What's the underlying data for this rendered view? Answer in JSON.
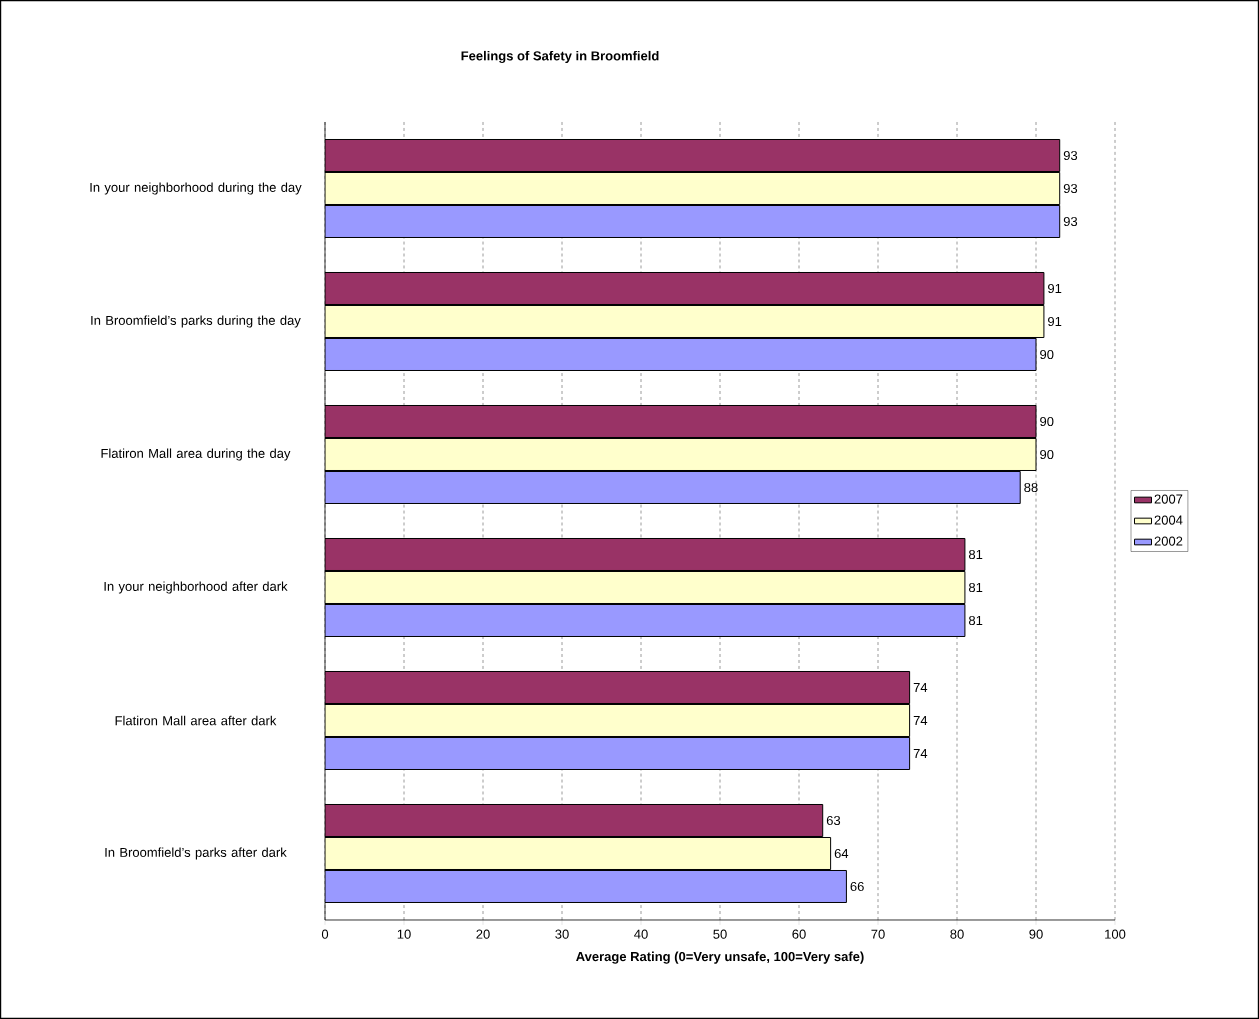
{
  "chart_data": {
    "type": "bar",
    "orientation": "horizontal",
    "title": "Feelings of Safety in Broomfield",
    "xlabel": "Average Rating (0=Very unsafe, 100=Very safe)",
    "categories": [
      "In your neighborhood during the day",
      "In Broomfield’s parks during the day",
      "Flatiron Mall area during the day",
      "In your neighborhood after dark",
      "Flatiron Mall area after dark",
      "In Broomfield’s parks after dark"
    ],
    "series": [
      {
        "name": "2007",
        "color": "#993366",
        "values": [
          93,
          91,
          90,
          81,
          74,
          63
        ]
      },
      {
        "name": "2004",
        "color": "#ffffcc",
        "values": [
          93,
          91,
          90,
          81,
          74,
          64
        ]
      },
      {
        "name": "2002",
        "color": "#9999ff",
        "values": [
          93,
          90,
          88,
          81,
          74,
          66
        ]
      }
    ],
    "xlim": [
      0,
      100
    ],
    "xticks": [
      0,
      10,
      20,
      30,
      40,
      50,
      60,
      70,
      80,
      90,
      100
    ],
    "grid": "x",
    "legend": "right",
    "data_labels": true
  }
}
